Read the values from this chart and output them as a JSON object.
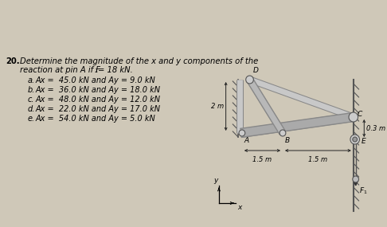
{
  "background_color": "#cfc8b8",
  "question_number": "20.",
  "question_text1": "Determine the magnitude of the x and y components of the",
  "question_text2": "reaction at pin A if F",
  "question_sub": "1",
  "question_text2b": "= 18 kN.",
  "options": [
    {
      "label": "a.",
      "text": "Ax =  45.0 kN and Ay = 9.0 kN"
    },
    {
      "label": "b.",
      "text": "Ax =  36.0 kN and Ay = 18.0 kN"
    },
    {
      "label": "c.",
      "text": "Ax =  48.0 kN and Ay = 12.0 kN"
    },
    {
      "label": "d.",
      "text": "Ax =  22.0 kN and Ay = 17.0 kN"
    },
    {
      "label": "e.",
      "text": "Ax =  54.0 kN and Ay = 5.0 kN"
    }
  ],
  "dim_2m": "2 m",
  "dim_15m_left": "1.5 m",
  "dim_15m_right": "1.5 m",
  "dim_03m": "0.3 m",
  "label_A": "A",
  "label_B": "B",
  "label_C": "C",
  "label_D": "D",
  "label_E": "E",
  "label_F1": "F",
  "label_y": "y",
  "label_x": "x"
}
